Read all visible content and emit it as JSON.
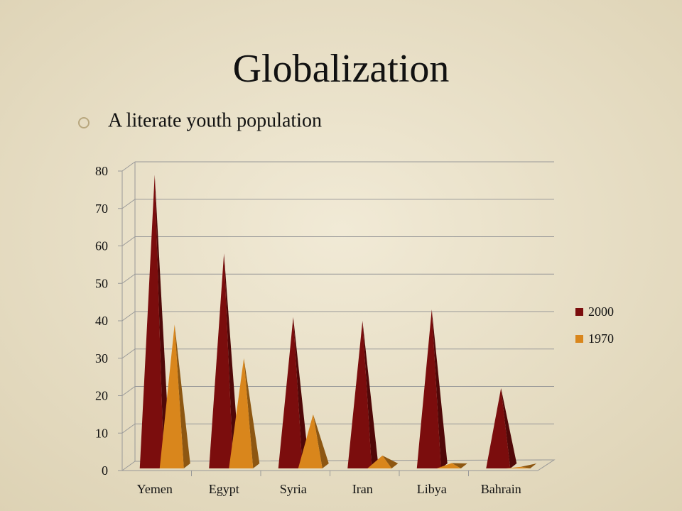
{
  "chart_data": {
    "type": "bar",
    "title": "Globalization",
    "subtitle": "A literate youth population",
    "categories": [
      "Yemen",
      "Egypt",
      "Syria",
      "Iran",
      "Libya",
      "Bahrain"
    ],
    "series": [
      {
        "name": "2000",
        "color": "#7b0d0d",
        "values": [
          79,
          58,
          41,
          40,
          43,
          22
        ]
      },
      {
        "name": "1970",
        "color": "#d9861c",
        "values": [
          39,
          30,
          15,
          4,
          2,
          1
        ]
      }
    ],
    "ylim": [
      0,
      80
    ],
    "yticks": [
      0,
      10,
      20,
      30,
      40,
      50,
      60,
      70,
      80
    ],
    "grid": true,
    "legend": "right"
  }
}
